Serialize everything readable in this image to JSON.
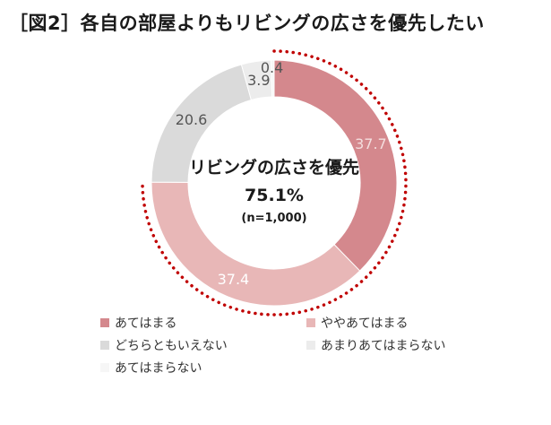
{
  "title": "［図2］各自の部屋よりもリビングの広さを優先したい",
  "chart_data": {
    "type": "pie",
    "variant": "donut",
    "categories": [
      "あてはまる",
      "ややあてはまる",
      "どちらともいえない",
      "あまりあてはまらない",
      "あてはまらない"
    ],
    "values": [
      37.7,
      37.4,
      20.6,
      3.9,
      0.4
    ],
    "colors": [
      "#d4888d",
      "#e8b7b7",
      "#dadada",
      "#ececec",
      "#f6f6f6"
    ],
    "center_label": "リビングの広さを優先",
    "center_value": "75.1%",
    "center_note": "(n=1,000)",
    "highlight": {
      "categories": [
        "あてはまる",
        "ややあてはまる"
      ],
      "style": "dotted",
      "color": "#c00000"
    },
    "legend_position": "bottom"
  }
}
